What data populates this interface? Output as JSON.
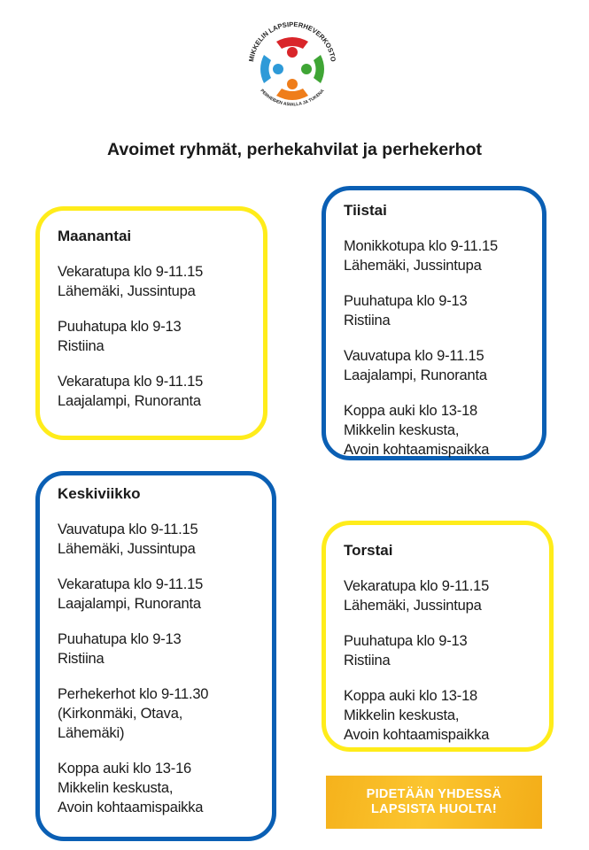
{
  "logo": {
    "top_text": "MIKKELIN LAPSIPERHEVERKOSTO",
    "bottom_text": "PERHEIDEN ASIALLA JA TUKENA",
    "colors": [
      "#d9252a",
      "#2e9ad8",
      "#3fa535",
      "#ef7d1a"
    ]
  },
  "title": "Avoimet ryhmät, perhekahvilat ja perhekerhot",
  "days": [
    {
      "id": "maanantai",
      "name": "Maanantai",
      "border": "yellow",
      "entries": [
        [
          "Vekaratupa klo 9-11.15",
          "Lähemäki, Jussintupa"
        ],
        [
          "Puuhatupa klo 9-13",
          "Ristiina"
        ],
        [
          "Vekaratupa klo 9-11.15",
          "Laajalampi, Runoranta"
        ]
      ]
    },
    {
      "id": "tiistai",
      "name": "Tiistai",
      "border": "blue",
      "entries": [
        [
          "Monikkotupa klo 9-11.15",
          "Lähemäki, Jussintupa"
        ],
        [
          "Puuhatupa klo 9-13",
          "Ristiina"
        ],
        [
          "Vauvatupa klo 9-11.15",
          "Laajalampi, Runoranta"
        ],
        [
          "Koppa auki klo 13-18",
          "Mikkelin keskusta,",
          "Avoin kohtaamispaikka"
        ]
      ]
    },
    {
      "id": "keskiviikko",
      "name": "Keskiviikko",
      "border": "blue",
      "entries": [
        [
          "Vauvatupa klo 9-11.15",
          "Lähemäki, Jussintupa"
        ],
        [
          "Vekaratupa klo 9-11.15",
          "Laajalampi, Runoranta"
        ],
        [
          "Puuhatupa klo 9-13",
          "Ristiina"
        ],
        [
          "Perhekerhot klo 9-11.30",
          "(Kirkonmäki, Otava,",
          "Lähemäki)"
        ],
        [
          "Koppa auki klo 13-16",
          "Mikkelin keskusta,",
          "Avoin kohtaamispaikka"
        ]
      ]
    },
    {
      "id": "torstai",
      "name": "Torstai",
      "border": "yellow",
      "entries": [
        [
          "Vekaratupa klo 9-11.15",
          "Lähemäki, Jussintupa"
        ],
        [
          "Puuhatupa klo 9-13",
          "Ristiina"
        ],
        [
          "Koppa auki klo 13-18",
          "Mikkelin keskusta,",
          "Avoin kohtaamispaikka"
        ]
      ]
    }
  ],
  "banner": {
    "line1": "PIDETÄÄN YHDESSÄ",
    "line2": "LAPSISTA HUOLTA!",
    "color": "#f5b21c"
  }
}
